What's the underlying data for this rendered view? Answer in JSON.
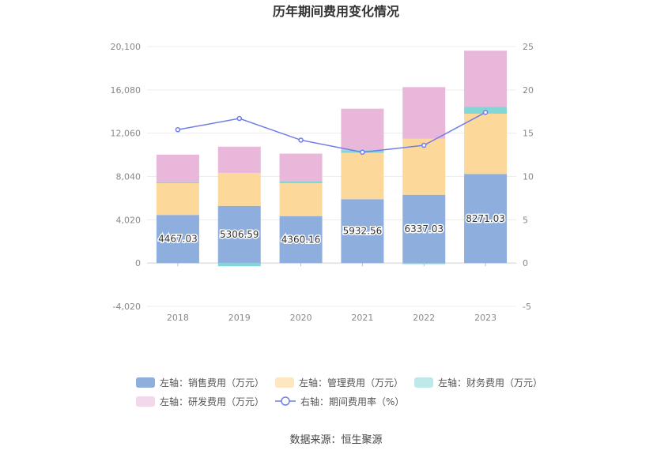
{
  "colors": {
    "sales": "#8eaedd",
    "mgmt": "#fdd89b",
    "fin": "#83d6d6",
    "rnd": "#e8b7da",
    "rate": "#6f7de8",
    "fin_legend": "#bde9ea",
    "rnd_legend": "#f3d8ec",
    "mgmt_legend": "#fde6c0"
  },
  "chart_data": {
    "type": "bar",
    "title": "历年期间费用变化情况",
    "categories": [
      "2018",
      "2019",
      "2020",
      "2021",
      "2022",
      "2023"
    ],
    "left_axis": {
      "min": -4020,
      "max": 20100,
      "ticks": [
        "-4,020",
        "0",
        "4,020",
        "8,040",
        "12,060",
        "16,080",
        "20,100"
      ],
      "tick_values": [
        -4020,
        0,
        4020,
        8040,
        12060,
        16080,
        20100
      ]
    },
    "right_axis": {
      "min": -5,
      "max": 25,
      "ticks": [
        "-5",
        "0",
        "5",
        "10",
        "15",
        "20",
        "25"
      ],
      "tick_values": [
        -5,
        0,
        5,
        10,
        15,
        20,
        25
      ]
    },
    "series": [
      {
        "name": "左轴：销售费用（万元）",
        "key": "sales",
        "axis": "left",
        "values": [
          4467.03,
          5306.59,
          4360.16,
          5932.56,
          6337.03,
          8271.03
        ],
        "labels": [
          "4467.03",
          "5306.59",
          "4360.16",
          "5932.56",
          "6337.03",
          "8271.03"
        ]
      },
      {
        "name": "左轴：管理费用（万元）",
        "key": "mgmt",
        "axis": "left",
        "values": [
          2950,
          3050,
          3050,
          4300,
          5200,
          5600
        ]
      },
      {
        "name": "左轴：财务费用（万元）",
        "key": "fin",
        "axis": "left",
        "values": [
          100,
          -300,
          200,
          250,
          -100,
          650
        ]
      },
      {
        "name": "左轴：研发费用（万元）",
        "key": "rnd",
        "axis": "left",
        "values": [
          2550,
          2450,
          2550,
          3850,
          4800,
          5200
        ]
      },
      {
        "name": "右轴：期间费用率（%）",
        "key": "rate",
        "axis": "right",
        "type": "line",
        "values": [
          15.4,
          16.7,
          14.2,
          12.8,
          13.6,
          17.4
        ]
      }
    ],
    "grid": true,
    "legend_position": "bottom"
  },
  "source": "数据来源：恒生聚源"
}
